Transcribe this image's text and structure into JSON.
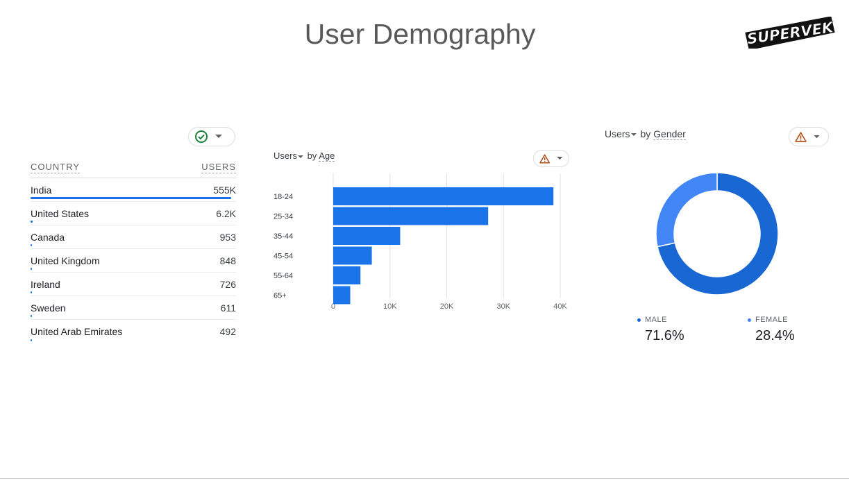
{
  "page": {
    "title": "User Demography",
    "logo_text": "SUPERVEK"
  },
  "country_table": {
    "header_country": "COUNTRY",
    "header_users": "USERS",
    "status_icon": "check-circle-icon",
    "rows": [
      {
        "country": "India",
        "users": "555K",
        "fraction": 1.0
      },
      {
        "country": "United States",
        "users": "6.2K",
        "fraction": 0.011
      },
      {
        "country": "Canada",
        "users": "953",
        "fraction": 0.0017
      },
      {
        "country": "United Kingdom",
        "users": "848",
        "fraction": 0.0015
      },
      {
        "country": "Ireland",
        "users": "726",
        "fraction": 0.0013
      },
      {
        "country": "Sweden",
        "users": "611",
        "fraction": 0.0011
      },
      {
        "country": "United Arab Emirates",
        "users": "492",
        "fraction": 0.0009
      }
    ]
  },
  "age_chart": {
    "title_metric": "Users",
    "title_by": "by",
    "title_dim": "Age",
    "status_icon": "warning-icon"
  },
  "gender_chart": {
    "title_metric": "Users",
    "title_by": "by",
    "title_dim": "Gender",
    "status_icon": "warning-icon",
    "male_label": "MALE",
    "male_value": "71.6%",
    "female_label": "FEMALE",
    "female_value": "28.4%"
  },
  "colors": {
    "male": "#1967d2",
    "female": "#4285f4",
    "bar": "#1a73e8",
    "warning": "#b3541e",
    "check": "#188038"
  },
  "chart_data": [
    {
      "type": "bar",
      "orientation": "horizontal",
      "title": "Users by Age",
      "categories": [
        "18-24",
        "25-34",
        "35-44",
        "45-54",
        "55-64",
        "65+"
      ],
      "values": [
        38800,
        27300,
        11800,
        6800,
        4800,
        3000
      ],
      "xlim": [
        0,
        40000
      ],
      "x_ticks": [
        0,
        10000,
        20000,
        30000,
        40000
      ],
      "x_tick_labels": [
        "0",
        "10K",
        "20K",
        "30K",
        "40K"
      ],
      "grid": true
    },
    {
      "type": "pie",
      "donut": true,
      "title": "Users by Gender",
      "categories": [
        "MALE",
        "FEMALE"
      ],
      "values": [
        71.6,
        28.4
      ]
    }
  ]
}
